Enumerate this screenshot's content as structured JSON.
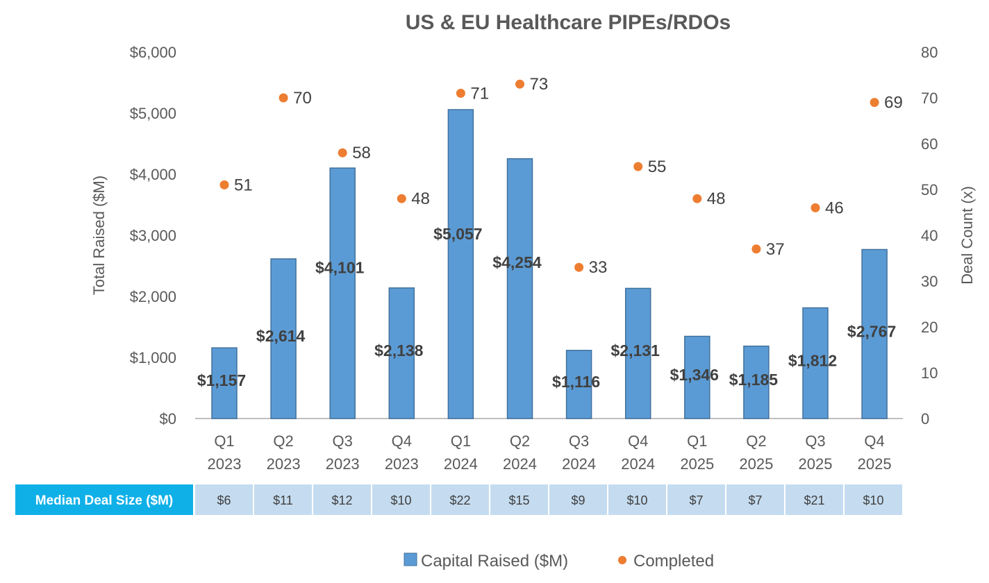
{
  "chart_data": {
    "type": "bar",
    "title": "US & EU Healthcare PIPEs/RDOs",
    "categories": [
      [
        "Q1",
        "2023"
      ],
      [
        "Q2",
        "2023"
      ],
      [
        "Q3",
        "2023"
      ],
      [
        "Q4",
        "2023"
      ],
      [
        "Q1",
        "2024"
      ],
      [
        "Q2",
        "2024"
      ],
      [
        "Q3",
        "2024"
      ],
      [
        "Q4",
        "2024"
      ],
      [
        "Q1",
        "2025"
      ],
      [
        "Q2",
        "2025"
      ],
      [
        "Q3",
        "2025"
      ],
      [
        "Q4",
        "2025"
      ]
    ],
    "series": [
      {
        "name": "Capital Raised ($M)",
        "type": "bar",
        "axis": "left",
        "color": "#5B9BD5",
        "values": [
          1157,
          2614,
          4101,
          2138,
          5057,
          4254,
          1116,
          2131,
          1346,
          1185,
          1812,
          2767
        ],
        "labels": [
          "$1,157",
          "$2,614",
          "$4,101",
          "$2,138",
          "$5,057",
          "$4,254",
          "$1,116",
          "$2,131",
          "$1,346",
          "$1,185",
          "$1,812",
          "$2,767"
        ]
      },
      {
        "name": "Completed",
        "type": "scatter",
        "axis": "right",
        "color": "#ED7D31",
        "values": [
          51,
          70,
          58,
          48,
          71,
          73,
          33,
          55,
          48,
          37,
          46,
          69
        ],
        "labels": [
          "51",
          "70",
          "58",
          "48",
          "71",
          "73",
          "33",
          "55",
          "48",
          "37",
          "46",
          "69"
        ]
      }
    ],
    "ylabel": "Total Raised ($M)",
    "ylim": [
      0,
      6000
    ],
    "yticks": [
      "$0",
      "$1,000",
      "$2,000",
      "$3,000",
      "$4,000",
      "$5,000",
      "$6,000"
    ],
    "ylabel_right": "Deal Count (x)",
    "ylim_right": [
      0,
      80
    ],
    "yticks_right": [
      "0",
      "10",
      "20",
      "30",
      "40",
      "50",
      "60",
      "70",
      "80"
    ],
    "grid": false,
    "legend": {
      "position": "bottom",
      "entries": [
        "Capital Raised ($M)",
        "Completed"
      ]
    },
    "table": {
      "header": "Median Deal Size ($M)",
      "values": [
        "$6",
        "$11",
        "$12",
        "$10",
        "$22",
        "$15",
        "$9",
        "$10",
        "$7",
        "$7",
        "$21",
        "$10"
      ],
      "header_color": "#0FB0E8",
      "cell_color": "#C5DCF0"
    }
  }
}
